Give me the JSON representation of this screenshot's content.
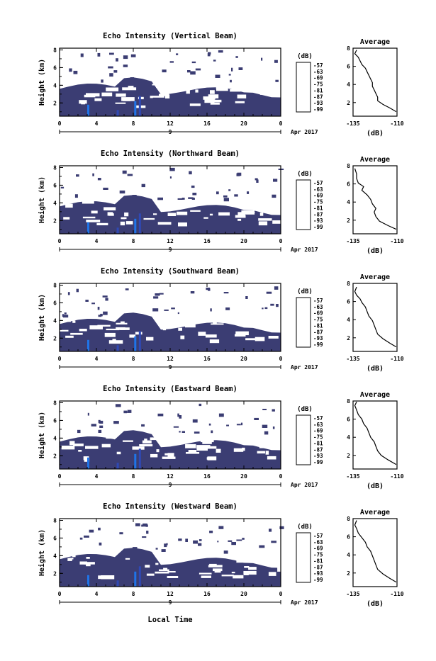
{
  "figure": {
    "date_label": "Apr 2017",
    "day_label": "9",
    "x_axis_label": "Local Time",
    "colorbar_unit": "(dB)",
    "average_title": "Average",
    "average_unit": "(dB)",
    "colors": {
      "echo_fill": "#3b3d73",
      "colorbar": [
        "#3b3d73",
        "#2f49b5",
        "#1f74e8",
        "#17b4e8",
        "#2ee0b0",
        "#a7ee4c",
        "#f2e02a",
        "#f59a26",
        "#ea4a21",
        "#d62a2a"
      ]
    }
  },
  "chart_data": [
    {
      "type": "heatmap",
      "title": "Echo Intensity (Vertical Beam)",
      "ylabel": "Height (km)",
      "x_ticks": [
        "0",
        "4",
        "8",
        "12",
        "16",
        "20",
        "0"
      ],
      "y_ticks": [
        "2",
        "4",
        "6",
        "8"
      ],
      "xlim": [
        0,
        24
      ],
      "ylim": [
        0.5,
        8.2
      ],
      "colorbar_ticks": [
        "-57",
        "-63",
        "-69",
        "-75",
        "-81",
        "-87",
        "-93",
        "-99"
      ],
      "average": {
        "x_ticks": [
          "-135",
          "-110"
        ],
        "y_ticks": [
          "2",
          "4",
          "6",
          "8"
        ],
        "xlim": [
          -135,
          -110
        ],
        "ylim": [
          0.5,
          8
        ],
        "profile": [
          [
            -110.5,
            1.0
          ],
          [
            -114,
            1.4
          ],
          [
            -118,
            1.8
          ],
          [
            -121,
            2.2
          ],
          [
            -121,
            2.6
          ],
          [
            -122,
            3.0
          ],
          [
            -123,
            3.4
          ],
          [
            -124,
            3.8
          ],
          [
            -124,
            4.2
          ],
          [
            -125,
            4.6
          ],
          [
            -126,
            5.0
          ],
          [
            -127,
            5.4
          ],
          [
            -128,
            5.8
          ],
          [
            -130,
            6.2
          ],
          [
            -131,
            6.6
          ],
          [
            -132,
            7.0
          ],
          [
            -134,
            7.4
          ],
          [
            -133,
            7.8
          ]
        ]
      }
    },
    {
      "type": "heatmap",
      "title": "Echo Intensity (Northward Beam)",
      "ylabel": "Height (km)",
      "x_ticks": [
        "0",
        "4",
        "8",
        "12",
        "16",
        "20",
        "0"
      ],
      "y_ticks": [
        "2",
        "4",
        "6",
        "8"
      ],
      "xlim": [
        0,
        24
      ],
      "ylim": [
        0.5,
        8.2
      ],
      "colorbar_ticks": [
        "-57",
        "-63",
        "-69",
        "-75",
        "-81",
        "-87",
        "-93",
        "-99"
      ],
      "average": {
        "x_ticks": [
          "-135",
          "-110"
        ],
        "y_ticks": [
          "2",
          "4",
          "6",
          "8"
        ],
        "xlim": [
          -135,
          -110
        ],
        "ylim": [
          0.5,
          8
        ],
        "profile": [
          [
            -110.5,
            1.0
          ],
          [
            -115,
            1.4
          ],
          [
            -120,
            1.9
          ],
          [
            -122,
            2.4
          ],
          [
            -123,
            2.9
          ],
          [
            -122,
            3.3
          ],
          [
            -124,
            3.8
          ],
          [
            -125,
            4.3
          ],
          [
            -127,
            4.8
          ],
          [
            -130,
            5.3
          ],
          [
            -129,
            5.7
          ],
          [
            -132,
            6.1
          ],
          [
            -133,
            6.6
          ],
          [
            -133,
            7.1
          ],
          [
            -134,
            7.7
          ]
        ]
      }
    },
    {
      "type": "heatmap",
      "title": "Echo Intensity (Southward Beam)",
      "ylabel": "Height (km)",
      "x_ticks": [
        "0",
        "4",
        "8",
        "12",
        "16",
        "20",
        "0"
      ],
      "y_ticks": [
        "2",
        "4",
        "6",
        "8"
      ],
      "xlim": [
        0,
        24
      ],
      "ylim": [
        0.5,
        8.2
      ],
      "colorbar_ticks": [
        "-57",
        "-63",
        "-69",
        "-75",
        "-81",
        "-87",
        "-93",
        "-99"
      ],
      "average": {
        "x_ticks": [
          "-135",
          "-110"
        ],
        "y_ticks": [
          "2",
          "4",
          "6",
          "8"
        ],
        "xlim": [
          -135,
          -110
        ],
        "ylim": [
          0.5,
          8
        ],
        "profile": [
          [
            -110.5,
            1.0
          ],
          [
            -114,
            1.4
          ],
          [
            -118,
            1.9
          ],
          [
            -121,
            2.4
          ],
          [
            -122,
            2.9
          ],
          [
            -123,
            3.4
          ],
          [
            -124,
            3.9
          ],
          [
            -126,
            4.4
          ],
          [
            -127,
            4.9
          ],
          [
            -128,
            5.4
          ],
          [
            -130,
            5.9
          ],
          [
            -131,
            6.3
          ],
          [
            -133,
            6.7
          ],
          [
            -134,
            7.1
          ],
          [
            -133,
            7.6
          ]
        ]
      }
    },
    {
      "type": "heatmap",
      "title": "Echo Intensity (Eastward Beam)",
      "ylabel": "Height (km)",
      "x_ticks": [
        "0",
        "4",
        "8",
        "12",
        "16",
        "20",
        "0"
      ],
      "y_ticks": [
        "2",
        "4",
        "6",
        "8"
      ],
      "xlim": [
        0,
        24
      ],
      "ylim": [
        0.5,
        8.2
      ],
      "colorbar_ticks": [
        "-57",
        "-63",
        "-69",
        "-75",
        "-81",
        "-87",
        "-93",
        "-99"
      ],
      "average": {
        "x_ticks": [
          "-135",
          "-110"
        ],
        "y_ticks": [
          "2",
          "4",
          "6",
          "8"
        ],
        "xlim": [
          -135,
          -110
        ],
        "ylim": [
          0.5,
          8
        ],
        "profile": [
          [
            -110.5,
            1.0
          ],
          [
            -115,
            1.5
          ],
          [
            -119,
            2.0
          ],
          [
            -121,
            2.5
          ],
          [
            -122,
            3.0
          ],
          [
            -123,
            3.5
          ],
          [
            -125,
            4.0
          ],
          [
            -126,
            4.5
          ],
          [
            -127,
            5.0
          ],
          [
            -129,
            5.5
          ],
          [
            -130,
            6.0
          ],
          [
            -132,
            6.5
          ],
          [
            -133,
            7.0
          ],
          [
            -134,
            7.5
          ],
          [
            -133,
            7.9
          ]
        ]
      }
    },
    {
      "type": "heatmap",
      "title": "Echo Intensity (Westward Beam)",
      "ylabel": "Height (km)",
      "x_ticks": [
        "0",
        "4",
        "8",
        "12",
        "16",
        "20",
        "0"
      ],
      "y_ticks": [
        "2",
        "4",
        "6",
        "8"
      ],
      "xlim": [
        0,
        24
      ],
      "ylim": [
        0.5,
        8.2
      ],
      "colorbar_ticks": [
        "-57",
        "-63",
        "-69",
        "-75",
        "-81",
        "-87",
        "-93",
        "-99"
      ],
      "average": {
        "x_ticks": [
          "-135",
          "-110"
        ],
        "y_ticks": [
          "2",
          "4",
          "6",
          "8"
        ],
        "xlim": [
          -135,
          -110
        ],
        "ylim": [
          0.5,
          8
        ],
        "profile": [
          [
            -110.5,
            1.0
          ],
          [
            -114,
            1.4
          ],
          [
            -118,
            1.9
          ],
          [
            -121,
            2.4
          ],
          [
            -122,
            2.9
          ],
          [
            -123,
            3.4
          ],
          [
            -124,
            3.9
          ],
          [
            -125,
            4.4
          ],
          [
            -127,
            4.9
          ],
          [
            -128,
            5.4
          ],
          [
            -130,
            5.9
          ],
          [
            -132,
            6.4
          ],
          [
            -133,
            6.9
          ],
          [
            -134,
            7.3
          ],
          [
            -133,
            7.8
          ]
        ]
      }
    }
  ]
}
